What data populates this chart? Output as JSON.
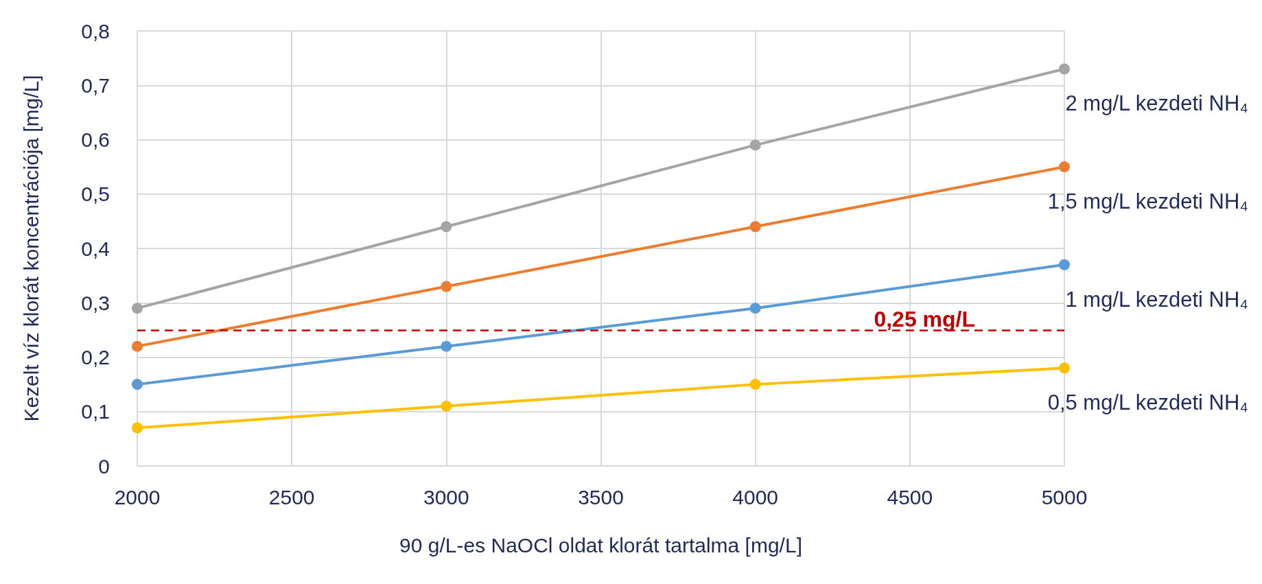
{
  "chart_data": {
    "type": "line",
    "xlabel": "90 g/L-es NaOCl oldat klorát tartalma [mg/L]",
    "ylabel": "Kezelt víz klorát koncentrációja [mg/L]",
    "x": [
      2000,
      3000,
      4000,
      5000
    ],
    "series": [
      {
        "name": "2 mg/L kezdeti NH₄",
        "color": "#a5a5a5",
        "values": [
          0.29,
          0.44,
          0.59,
          0.73
        ]
      },
      {
        "name": "1,5 mg/L kezdeti NH₄",
        "color": "#ed7d31",
        "values": [
          0.22,
          0.33,
          0.44,
          0.55
        ]
      },
      {
        "name": "1 mg/L kezdeti NH₄",
        "color": "#5b9bd5",
        "values": [
          0.15,
          0.22,
          0.29,
          0.37
        ]
      },
      {
        "name": "0,5 mg/L kezdeti NH₄",
        "color": "#ffc000",
        "values": [
          0.07,
          0.11,
          0.15,
          0.18
        ]
      }
    ],
    "xlim": [
      2000,
      5000
    ],
    "xticks": [
      2000,
      2500,
      3000,
      3500,
      4000,
      4500,
      5000
    ],
    "ylim": [
      0,
      0.8
    ],
    "yticks": [
      0,
      {
        "value": 0.1,
        "label": "0,1"
      },
      {
        "value": 0.2,
        "label": "0,2"
      },
      {
        "value": 0.3,
        "label": "0,3"
      },
      {
        "value": 0.4,
        "label": "0,4"
      },
      {
        "value": 0.5,
        "label": "0,5"
      },
      {
        "value": 0.6,
        "label": "0,6"
      },
      {
        "value": 0.7,
        "label": "0,7"
      },
      {
        "value": 0.8,
        "label": "0,8"
      }
    ],
    "ref_lines": [
      {
        "axis": "y",
        "value": 0.25,
        "label": "0,25 mg/L",
        "color": "#c00000",
        "line_style": "dashed"
      }
    ],
    "grid": true,
    "legend": false,
    "marker": "circle",
    "line_style": "solid"
  }
}
